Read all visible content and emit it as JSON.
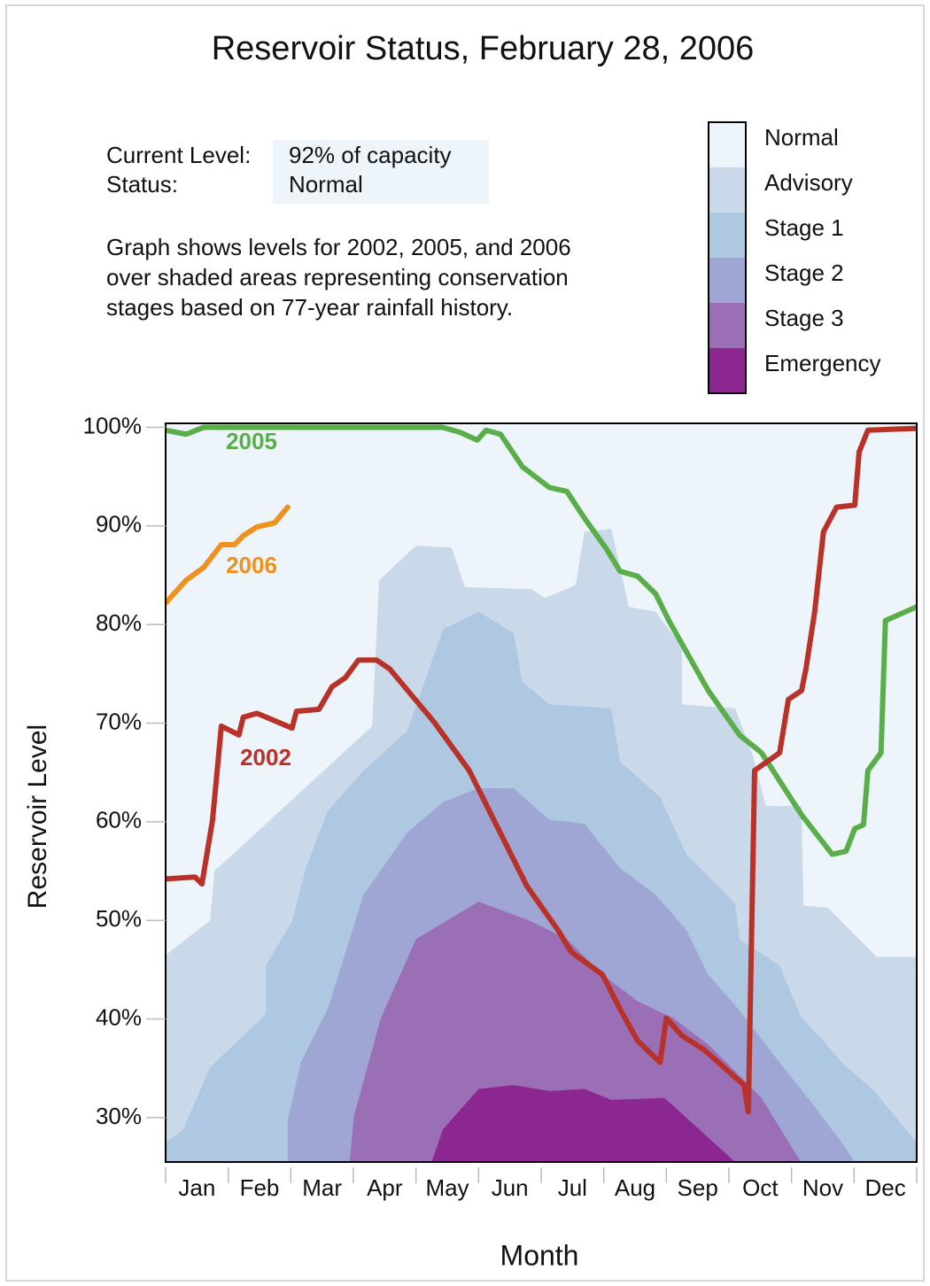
{
  "chart_data": {
    "type": "line",
    "title": "Reservoir Status, February 28, 2006",
    "info": {
      "rows": [
        {
          "label": "Current Level:",
          "value": "92% of capacity"
        },
        {
          "label": "Status:",
          "value": "Normal"
        }
      ],
      "note": [
        "Graph shows levels for 2002, 2005, and 2006",
        "over shaded areas representing conservation",
        "stages based on 77-year rainfall history."
      ]
    },
    "x_label": "Month",
    "y_label": "Reservoir Level",
    "categories": [
      "Jan",
      "Feb",
      "Mar",
      "Apr",
      "May",
      "Jun",
      "Jul",
      "Aug",
      "Sep",
      "Oct",
      "Nov",
      "Dec"
    ],
    "xlim": [
      0,
      12
    ],
    "ylim": [
      25.5,
      100.4
    ],
    "yticks": [
      {
        "value": 30,
        "label": "30%"
      },
      {
        "value": 40,
        "label": "40%"
      },
      {
        "value": 50,
        "label": "50%"
      },
      {
        "value": 60,
        "label": "60%"
      },
      {
        "value": 70,
        "label": "70%"
      },
      {
        "value": 80,
        "label": "80%"
      },
      {
        "value": 90,
        "label": "90%"
      },
      {
        "value": 100,
        "label": "100%"
      }
    ],
    "stages": [
      {
        "name": "Normal",
        "color": "#eef5fa"
      },
      {
        "name": "Advisory",
        "color": "#c9d9ea",
        "x": [
          0,
          0.71,
          0.78,
          3.3,
          3.41,
          4.0,
          4.57,
          4.78,
          5.84,
          6.06,
          6.55,
          6.69,
          7.12,
          7.4,
          7.83,
          8.25,
          8.25,
          9.1,
          9.38,
          9.59,
          10.16,
          10.19,
          10.58,
          10.94,
          11.36,
          12
        ],
        "values": [
          46.5,
          50,
          55,
          69.7,
          84.5,
          88.0,
          87.8,
          83.8,
          83.6,
          82.7,
          84.0,
          89.4,
          89.7,
          81.8,
          81.3,
          77.7,
          71.9,
          71.5,
          66.7,
          61.6,
          61.6,
          51.5,
          51.3,
          49.0,
          46.3,
          46.3
        ]
      },
      {
        "name": "Stage 1",
        "color": "#afc8e2",
        "x": [
          0,
          0.28,
          0.71,
          1.6,
          1.6,
          2.02,
          2.24,
          2.59,
          3.16,
          3.86,
          4.43,
          5.0,
          5.56,
          5.7,
          6.13,
          7.12,
          7.26,
          7.9,
          8.32,
          9.1,
          9.17,
          9.81,
          10.16,
          10.51,
          10.8,
          11.29,
          12
        ],
        "values": [
          27.5,
          28.8,
          35.1,
          40.5,
          45.4,
          49.9,
          55.3,
          61.1,
          65.2,
          69.2,
          79.5,
          81.3,
          79.1,
          74.2,
          71.9,
          71.5,
          66.1,
          62.5,
          56.7,
          51.7,
          48.1,
          45.4,
          40.1,
          37.8,
          35.6,
          32.9,
          27.5
        ]
      },
      {
        "name": "Stage 2",
        "color": "#9fa6d3",
        "x": [
          1.95,
          1.95,
          2.16,
          2.59,
          3.16,
          3.86,
          4.43,
          5.0,
          5.56,
          6.13,
          6.69,
          7.26,
          7.83,
          8.32,
          8.67,
          9.1,
          9.81,
          10.37,
          10.8,
          11.01
        ],
        "values": [
          25.5,
          29.7,
          35.6,
          41.0,
          52.6,
          58.9,
          62.0,
          63.4,
          63.4,
          60.2,
          59.8,
          55.3,
          52.6,
          49.0,
          44.5,
          41.4,
          35.6,
          31.1,
          27.5,
          25.5
        ]
      },
      {
        "name": "Stage 3",
        "color": "#9a6fb6",
        "x": [
          2.94,
          3.01,
          3.44,
          4.0,
          5.0,
          5.84,
          6.41,
          6.98,
          7.54,
          8.11,
          8.67,
          9.1,
          9.52,
          10.09,
          10.16
        ],
        "values": [
          25.5,
          30.2,
          40.1,
          48.1,
          51.9,
          49.9,
          48.1,
          44.5,
          41.8,
          40.1,
          37.4,
          34.7,
          32.0,
          26.1,
          25.5
        ]
      },
      {
        "name": "Emergency",
        "color": "#8c2690",
        "x": [
          4.25,
          4.43,
          5.0,
          5.56,
          6.13,
          6.69,
          7.12,
          7.97,
          9.1
        ],
        "values": [
          25.5,
          28.8,
          32.9,
          33.3,
          32.7,
          32.9,
          31.8,
          32.0,
          25.5
        ]
      }
    ],
    "series": [
      {
        "name": "2005",
        "color": "#5aae4a",
        "x": [
          0,
          0.33,
          0.61,
          4.42,
          4.7,
          4.98,
          5.12,
          5.35,
          5.7,
          6.13,
          6.41,
          6.69,
          7.05,
          7.26,
          7.54,
          7.83,
          8.04,
          8.67,
          9.17,
          9.52,
          10.16,
          10.65,
          10.87,
          11.01,
          11.15,
          11.22,
          11.43,
          11.5,
          12
        ],
        "values": [
          99.7,
          99.3,
          100,
          100,
          99.5,
          98.7,
          99.7,
          99.3,
          96,
          93.9,
          93.5,
          90.8,
          87.6,
          85.4,
          84.9,
          83.1,
          80.4,
          73.3,
          68.8,
          67,
          60.7,
          56.7,
          57,
          59.3,
          59.7,
          65.2,
          67,
          80.4,
          81.8
        ]
      },
      {
        "name": "2006",
        "color": "#f0901e",
        "x": [
          0,
          0.33,
          0.61,
          0.89,
          1.1,
          1.24,
          1.46,
          1.74,
          1.95
        ],
        "values": [
          82.2,
          84.5,
          85.8,
          88.1,
          88.1,
          89,
          89.9,
          90.3,
          91.9
        ]
      },
      {
        "name": "2002",
        "color": "#b8322a",
        "x": [
          0,
          0.47,
          0.58,
          0.75,
          0.89,
          1.17,
          1.24,
          1.46,
          2.02,
          2.09,
          2.45,
          2.66,
          2.87,
          3.08,
          3.37,
          3.58,
          4.29,
          4.85,
          5.77,
          6.27,
          6.48,
          6.98,
          7.26,
          7.54,
          7.9,
          8.0,
          8.25,
          8.6,
          9.24,
          9.31,
          9.41,
          9.81,
          9.95,
          10.16,
          10.23,
          10.37,
          10.51,
          10.72,
          11.01,
          11.08,
          11.22,
          12
        ],
        "values": [
          54.2,
          54.4,
          53.7,
          60.2,
          69.7,
          68.8,
          70.6,
          71,
          69.5,
          71.2,
          71.4,
          73.7,
          74.6,
          76.4,
          76.4,
          75.5,
          70.1,
          65.2,
          53.5,
          49,
          46.8,
          44.5,
          41,
          37.8,
          35.6,
          40.1,
          38.3,
          36.9,
          33.3,
          30.6,
          65.2,
          67,
          72.4,
          73.3,
          75.5,
          81.3,
          89.4,
          91.9,
          92.1,
          97.5,
          99.7,
          99.9
        ]
      }
    ]
  }
}
